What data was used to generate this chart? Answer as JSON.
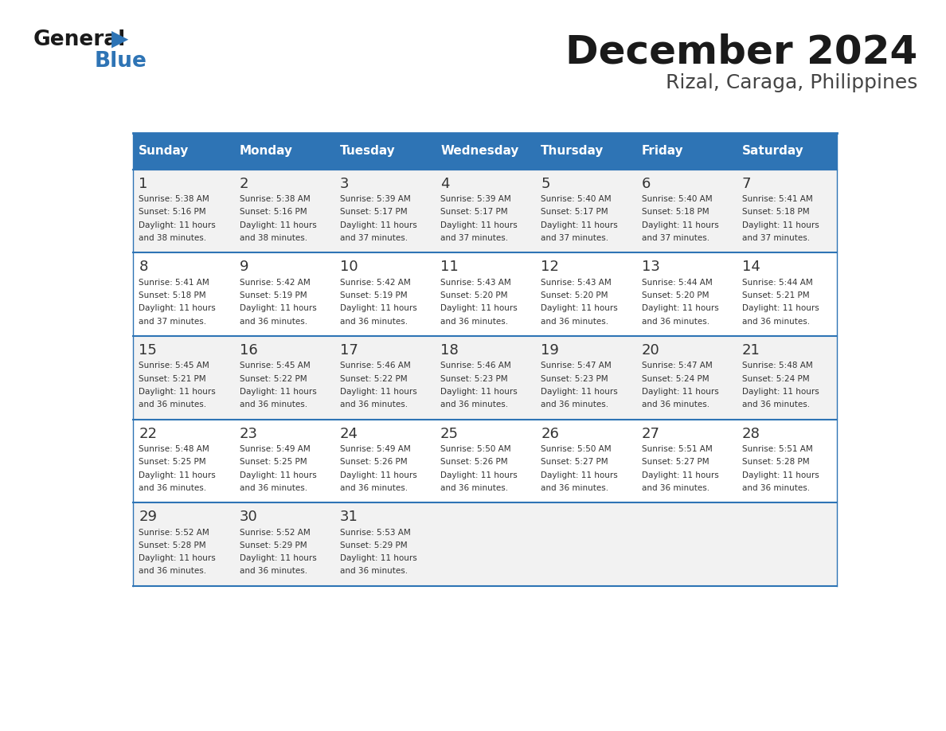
{
  "title": "December 2024",
  "subtitle": "Rizal, Caraga, Philippines",
  "header_color": "#2E74B5",
  "header_text_color": "#FFFFFF",
  "day_names": [
    "Sunday",
    "Monday",
    "Tuesday",
    "Wednesday",
    "Thursday",
    "Friday",
    "Saturday"
  ],
  "bg_color": "#FFFFFF",
  "cell_bg_even": "#F2F2F2",
  "cell_bg_odd": "#FFFFFF",
  "divider_color": "#2E74B5",
  "text_color": "#333333",
  "calendar": [
    [
      {
        "day": 1,
        "sunrise": "5:38 AM",
        "sunset": "5:16 PM",
        "daylight": "11 hours and 38 minutes."
      },
      {
        "day": 2,
        "sunrise": "5:38 AM",
        "sunset": "5:16 PM",
        "daylight": "11 hours and 38 minutes."
      },
      {
        "day": 3,
        "sunrise": "5:39 AM",
        "sunset": "5:17 PM",
        "daylight": "11 hours and 37 minutes."
      },
      {
        "day": 4,
        "sunrise": "5:39 AM",
        "sunset": "5:17 PM",
        "daylight": "11 hours and 37 minutes."
      },
      {
        "day": 5,
        "sunrise": "5:40 AM",
        "sunset": "5:17 PM",
        "daylight": "11 hours and 37 minutes."
      },
      {
        "day": 6,
        "sunrise": "5:40 AM",
        "sunset": "5:18 PM",
        "daylight": "11 hours and 37 minutes."
      },
      {
        "day": 7,
        "sunrise": "5:41 AM",
        "sunset": "5:18 PM",
        "daylight": "11 hours and 37 minutes."
      }
    ],
    [
      {
        "day": 8,
        "sunrise": "5:41 AM",
        "sunset": "5:18 PM",
        "daylight": "11 hours and 37 minutes."
      },
      {
        "day": 9,
        "sunrise": "5:42 AM",
        "sunset": "5:19 PM",
        "daylight": "11 hours and 36 minutes."
      },
      {
        "day": 10,
        "sunrise": "5:42 AM",
        "sunset": "5:19 PM",
        "daylight": "11 hours and 36 minutes."
      },
      {
        "day": 11,
        "sunrise": "5:43 AM",
        "sunset": "5:20 PM",
        "daylight": "11 hours and 36 minutes."
      },
      {
        "day": 12,
        "sunrise": "5:43 AM",
        "sunset": "5:20 PM",
        "daylight": "11 hours and 36 minutes."
      },
      {
        "day": 13,
        "sunrise": "5:44 AM",
        "sunset": "5:20 PM",
        "daylight": "11 hours and 36 minutes."
      },
      {
        "day": 14,
        "sunrise": "5:44 AM",
        "sunset": "5:21 PM",
        "daylight": "11 hours and 36 minutes."
      }
    ],
    [
      {
        "day": 15,
        "sunrise": "5:45 AM",
        "sunset": "5:21 PM",
        "daylight": "11 hours and 36 minutes."
      },
      {
        "day": 16,
        "sunrise": "5:45 AM",
        "sunset": "5:22 PM",
        "daylight": "11 hours and 36 minutes."
      },
      {
        "day": 17,
        "sunrise": "5:46 AM",
        "sunset": "5:22 PM",
        "daylight": "11 hours and 36 minutes."
      },
      {
        "day": 18,
        "sunrise": "5:46 AM",
        "sunset": "5:23 PM",
        "daylight": "11 hours and 36 minutes."
      },
      {
        "day": 19,
        "sunrise": "5:47 AM",
        "sunset": "5:23 PM",
        "daylight": "11 hours and 36 minutes."
      },
      {
        "day": 20,
        "sunrise": "5:47 AM",
        "sunset": "5:24 PM",
        "daylight": "11 hours and 36 minutes."
      },
      {
        "day": 21,
        "sunrise": "5:48 AM",
        "sunset": "5:24 PM",
        "daylight": "11 hours and 36 minutes."
      }
    ],
    [
      {
        "day": 22,
        "sunrise": "5:48 AM",
        "sunset": "5:25 PM",
        "daylight": "11 hours and 36 minutes."
      },
      {
        "day": 23,
        "sunrise": "5:49 AM",
        "sunset": "5:25 PM",
        "daylight": "11 hours and 36 minutes."
      },
      {
        "day": 24,
        "sunrise": "5:49 AM",
        "sunset": "5:26 PM",
        "daylight": "11 hours and 36 minutes."
      },
      {
        "day": 25,
        "sunrise": "5:50 AM",
        "sunset": "5:26 PM",
        "daylight": "11 hours and 36 minutes."
      },
      {
        "day": 26,
        "sunrise": "5:50 AM",
        "sunset": "5:27 PM",
        "daylight": "11 hours and 36 minutes."
      },
      {
        "day": 27,
        "sunrise": "5:51 AM",
        "sunset": "5:27 PM",
        "daylight": "11 hours and 36 minutes."
      },
      {
        "day": 28,
        "sunrise": "5:51 AM",
        "sunset": "5:28 PM",
        "daylight": "11 hours and 36 minutes."
      }
    ],
    [
      {
        "day": 29,
        "sunrise": "5:52 AM",
        "sunset": "5:28 PM",
        "daylight": "11 hours and 36 minutes."
      },
      {
        "day": 30,
        "sunrise": "5:52 AM",
        "sunset": "5:29 PM",
        "daylight": "11 hours and 36 minutes."
      },
      {
        "day": 31,
        "sunrise": "5:53 AM",
        "sunset": "5:29 PM",
        "daylight": "11 hours and 36 minutes."
      },
      null,
      null,
      null,
      null
    ]
  ]
}
